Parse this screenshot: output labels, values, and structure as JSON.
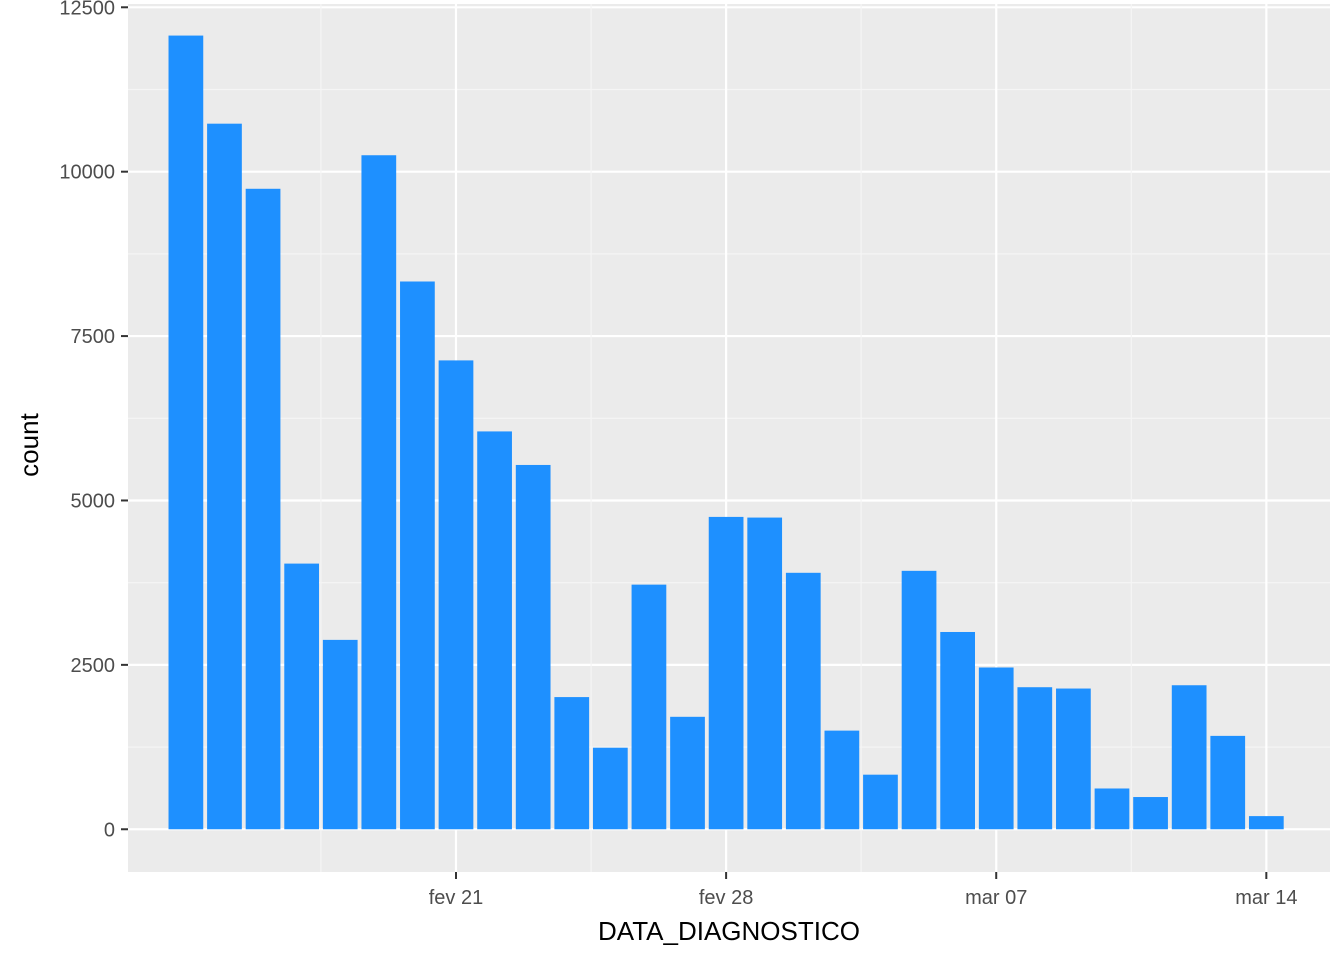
{
  "chart_data": {
    "type": "bar",
    "xlabel": "DATA_DIAGNOSTICO",
    "ylabel": "count",
    "x_tick_labels": [
      "fev 21",
      "fev 28",
      "mar 07",
      "mar 14"
    ],
    "y_tick_labels": [
      "0",
      "2500",
      "5000",
      "7500",
      "10000",
      "12500"
    ],
    "ylim": [
      -650,
      12550
    ],
    "grid": true,
    "dates": [
      "2021-02-14",
      "2021-02-15",
      "2021-02-16",
      "2021-02-17",
      "2021-02-18",
      "2021-02-19",
      "2021-02-20",
      "2021-02-21",
      "2021-02-22",
      "2021-02-23",
      "2021-02-24",
      "2021-02-25",
      "2021-02-26",
      "2021-02-27",
      "2021-02-28",
      "2021-03-01",
      "2021-03-02",
      "2021-03-03",
      "2021-03-04",
      "2021-03-05",
      "2021-03-06",
      "2021-03-07",
      "2021-03-08",
      "2021-03-09",
      "2021-03-10",
      "2021-03-11",
      "2021-03-12",
      "2021-03-13",
      "2021-03-14",
      "2021-03-15"
    ],
    "values": [
      12070,
      10730,
      9740,
      4040,
      2880,
      10250,
      8330,
      7130,
      6050,
      5540,
      2010,
      1240,
      3720,
      1710,
      4750,
      4740,
      3900,
      1500,
      830,
      3930,
      3000,
      2460,
      2160,
      2140,
      620,
      490,
      2190,
      1420,
      200,
      0
    ],
    "colors": {
      "bar": "#1E90FF",
      "panel": "#EBEBEB",
      "grid_major": "#FFFFFF",
      "grid_minor": "#F5F5F5"
    }
  }
}
